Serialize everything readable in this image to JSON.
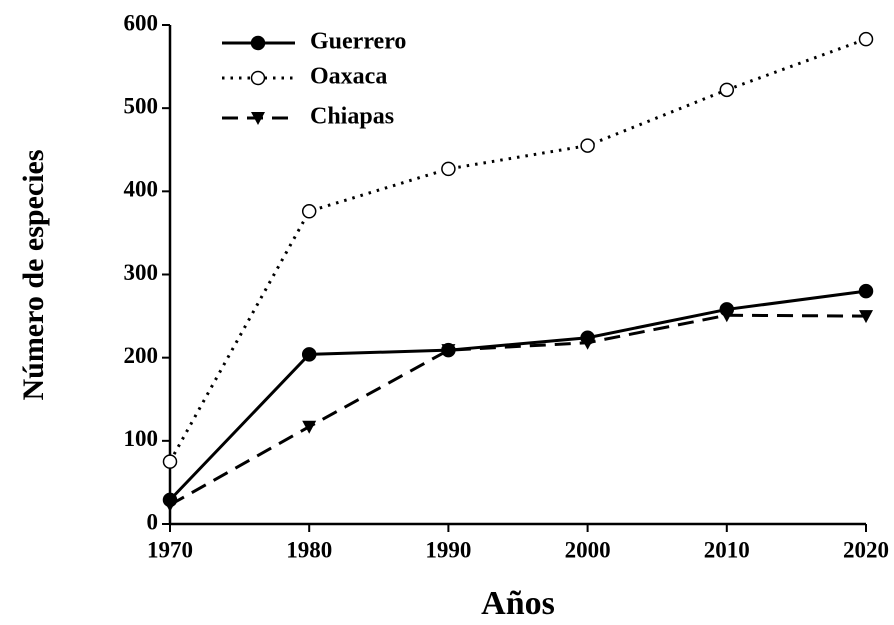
{
  "chart_data": {
    "type": "line",
    "x_label": "Años",
    "y_label": "Número de especies",
    "x": [
      1970,
      1980,
      1990,
      2000,
      2010,
      2020
    ],
    "xlim": [
      1970,
      2020
    ],
    "xticks": [
      1970,
      1980,
      1990,
      2000,
      2010,
      2020
    ],
    "ylim": [
      0,
      600
    ],
    "yticks": [
      0,
      100,
      200,
      300,
      400,
      500,
      600
    ],
    "grid": false,
    "legend": "upper-left",
    "series": [
      {
        "name": "Guerrero",
        "color": "#000000",
        "marker": "filled-circle",
        "line_style": "solid",
        "values": [
          29,
          204,
          209,
          224,
          258,
          280
        ]
      },
      {
        "name": "Oaxaca",
        "color": "#000000",
        "marker": "open-circle",
        "line_style": "dotted",
        "values": [
          75,
          376,
          427,
          455,
          522,
          583
        ]
      },
      {
        "name": "Chiapas",
        "color": "#000000",
        "marker": "triangle-down",
        "line_style": "dashed",
        "values": [
          23,
          117,
          209,
          218,
          251,
          250
        ]
      }
    ]
  }
}
